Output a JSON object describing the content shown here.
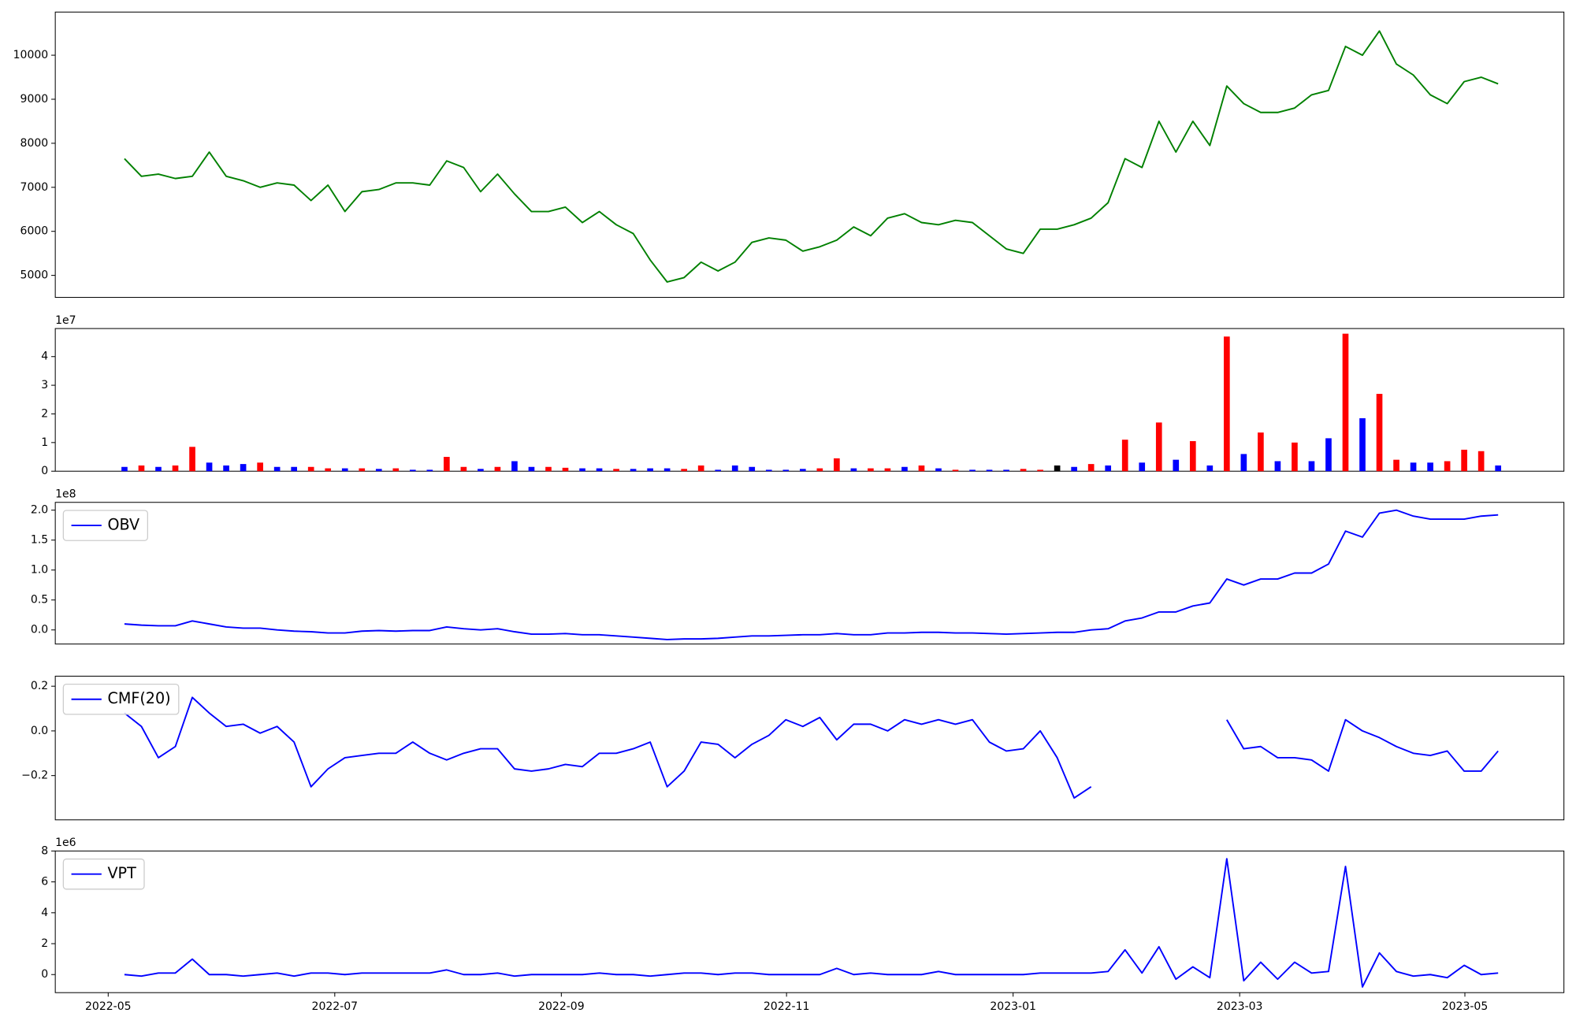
{
  "chart_data": [
    {
      "type": "line",
      "x": [
        2022.345,
        2022.3575,
        2022.37,
        2022.3825,
        2022.395,
        2022.4075,
        2022.42,
        2022.4325,
        2022.445,
        2022.4575,
        2022.47,
        2022.4825,
        2022.495,
        2022.5075,
        2022.52,
        2022.5325,
        2022.545,
        2022.5575,
        2022.57,
        2022.5825,
        2022.595,
        2022.6075,
        2022.62,
        2022.6325,
        2022.645,
        2022.6575,
        2022.67,
        2022.6825,
        2022.695,
        2022.7075,
        2022.72,
        2022.7325,
        2022.745,
        2022.7575,
        2022.77,
        2022.7825,
        2022.795,
        2022.8075,
        2022.82,
        2022.8325,
        2022.845,
        2022.8575,
        2022.87,
        2022.8825,
        2022.895,
        2022.9075,
        2022.92,
        2022.9325,
        2022.945,
        2022.9575,
        2022.97,
        2022.9825,
        2022.995,
        2023.0075,
        2023.02,
        2023.0325,
        2023.045,
        2023.0575,
        2023.07,
        2023.0825,
        2023.095,
        2023.1075,
        2023.12,
        2023.1325,
        2023.145,
        2023.1575,
        2023.17,
        2023.1825,
        2023.195,
        2023.2075,
        2023.22,
        2023.2325,
        2023.245,
        2023.2575,
        2023.27,
        2023.2825,
        2023.295,
        2023.3075,
        2023.32,
        2023.3325,
        2023.345,
        2023.3575
      ],
      "xlim": [
        2022.294,
        2023.406
      ],
      "values": [
        7650,
        7250,
        7300,
        7200,
        7250,
        7800,
        7250,
        7150,
        7000,
        7100,
        7050,
        6700,
        7050,
        6450,
        6900,
        6950,
        7100,
        7100,
        7050,
        7600,
        7450,
        6900,
        7300,
        6850,
        6450,
        6450,
        6550,
        6200,
        6450,
        6150,
        5950,
        5350,
        4850,
        4950,
        5300,
        5100,
        5300,
        5750,
        5850,
        5800,
        5550,
        5650,
        5800,
        6100,
        5900,
        6300,
        6400,
        6200,
        6150,
        6250,
        6200,
        5900,
        5600,
        5500,
        6050,
        6050,
        6150,
        6300,
        6650,
        7650,
        7450,
        8500,
        7800,
        8500,
        7950,
        9300,
        8900,
        8700,
        8700,
        8800,
        9100,
        9200,
        10200,
        10000,
        10550,
        9800,
        9550,
        9100,
        8900,
        9400,
        9500,
        9350
      ],
      "color": "#008000",
      "ylim": [
        4500,
        10980
      ],
      "yticks": [
        5000,
        6000,
        7000,
        8000,
        9000,
        10000
      ]
    },
    {
      "type": "bar",
      "offset_label": "1e7",
      "values": [
        0.15,
        0.2,
        0.15,
        0.2,
        0.85,
        0.3,
        0.2,
        0.25,
        0.3,
        0.15,
        0.15,
        0.15,
        0.1,
        0.1,
        0.1,
        0.08,
        0.1,
        0.05,
        0.05,
        0.5,
        0.15,
        0.08,
        0.15,
        0.35,
        0.15,
        0.15,
        0.12,
        0.1,
        0.1,
        0.08,
        0.08,
        0.1,
        0.1,
        0.08,
        0.2,
        0.05,
        0.2,
        0.15,
        0.05,
        0.05,
        0.08,
        0.1,
        0.45,
        0.1,
        0.1,
        0.1,
        0.15,
        0.2,
        0.1,
        0.05,
        0.05,
        0.05,
        0.05,
        0.08,
        0.05,
        0.2,
        0.15,
        0.25,
        0.2,
        1.1,
        0.3,
        1.7,
        0.4,
        1.05,
        0.2,
        4.7,
        0.6,
        1.35,
        0.35,
        1.0,
        0.35,
        1.15,
        4.8,
        1.85,
        2.7,
        0.4,
        0.3,
        0.3,
        0.35,
        0.75,
        0.7,
        0.2
      ],
      "colors": [
        "#0000ff",
        "#ff0000",
        "#0000ff",
        "#ff0000",
        "#ff0000",
        "#0000ff",
        "#0000ff",
        "#0000ff",
        "#ff0000",
        "#0000ff",
        "#0000ff",
        "#ff0000",
        "#ff0000",
        "#0000ff",
        "#ff0000",
        "#0000ff",
        "#ff0000",
        "#0000ff",
        "#0000ff",
        "#ff0000",
        "#ff0000",
        "#0000ff",
        "#ff0000",
        "#0000ff",
        "#0000ff",
        "#ff0000",
        "#ff0000",
        "#0000ff",
        "#0000ff",
        "#ff0000",
        "#0000ff",
        "#0000ff",
        "#0000ff",
        "#ff0000",
        "#ff0000",
        "#0000ff",
        "#0000ff",
        "#0000ff",
        "#0000ff",
        "#0000ff",
        "#0000ff",
        "#ff0000",
        "#ff0000",
        "#0000ff",
        "#ff0000",
        "#ff0000",
        "#0000ff",
        "#ff0000",
        "#0000ff",
        "#ff0000",
        "#0000ff",
        "#0000ff",
        "#0000ff",
        "#ff0000",
        "#ff0000",
        "#000000",
        "#0000ff",
        "#ff0000",
        "#0000ff",
        "#ff0000",
        "#0000ff",
        "#ff0000",
        "#0000ff",
        "#ff0000",
        "#0000ff",
        "#ff0000",
        "#0000ff",
        "#ff0000",
        "#0000ff",
        "#ff0000",
        "#0000ff",
        "#0000ff",
        "#ff0000",
        "#0000ff",
        "#ff0000",
        "#ff0000",
        "#0000ff",
        "#0000ff",
        "#ff0000",
        "#ff0000",
        "#ff0000",
        "#0000ff"
      ],
      "ylim": [
        0,
        4.98
      ],
      "yticks": [
        0,
        1,
        2,
        3,
        4
      ]
    },
    {
      "type": "line",
      "offset_label": "1e8",
      "series": [
        {
          "name": "OBV",
          "color": "#0000ff",
          "values": [
            0.1,
            0.08,
            0.07,
            0.07,
            0.15,
            0.1,
            0.05,
            0.03,
            0.03,
            0.0,
            -0.02,
            -0.03,
            -0.05,
            -0.05,
            -0.02,
            -0.01,
            -0.02,
            -0.01,
            -0.01,
            0.05,
            0.02,
            0.0,
            0.02,
            -0.03,
            -0.07,
            -0.07,
            -0.06,
            -0.08,
            -0.08,
            -0.1,
            -0.12,
            -0.14,
            -0.16,
            -0.15,
            -0.15,
            -0.14,
            -0.12,
            -0.1,
            -0.1,
            -0.09,
            -0.08,
            -0.08,
            -0.06,
            -0.08,
            -0.08,
            -0.05,
            -0.05,
            -0.04,
            -0.04,
            -0.05,
            -0.05,
            -0.06,
            -0.07,
            -0.06,
            -0.05,
            -0.04,
            -0.04,
            0.0,
            0.02,
            0.15,
            0.2,
            0.3,
            0.3,
            0.4,
            0.45,
            0.85,
            0.75,
            0.85,
            0.85,
            0.95,
            0.95,
            1.1,
            1.65,
            1.55,
            1.95,
            2.0,
            1.9,
            1.85,
            1.85,
            1.85,
            1.9,
            1.92
          ]
        }
      ],
      "legend": "upper left",
      "ylim": [
        -0.235,
        2.13
      ],
      "yticks": [
        {
          "value": 0,
          "label": "0.0"
        },
        0.5,
        {
          "value": 1,
          "label": "1.0"
        },
        1.5,
        {
          "value": 2,
          "label": "2.0"
        }
      ]
    },
    {
      "type": "line",
      "series": [
        {
          "name": "CMF(20)",
          "color": "#0000ff",
          "values": [
            0.08,
            0.02,
            -0.12,
            -0.07,
            0.15,
            0.08,
            0.02,
            0.03,
            -0.01,
            0.02,
            -0.05,
            -0.25,
            -0.17,
            -0.12,
            -0.11,
            -0.1,
            -0.1,
            -0.05,
            -0.1,
            -0.13,
            -0.1,
            -0.08,
            -0.08,
            -0.17,
            -0.18,
            -0.17,
            -0.15,
            -0.16,
            -0.1,
            -0.1,
            -0.08,
            -0.05,
            -0.25,
            -0.18,
            -0.05,
            -0.06,
            -0.12,
            -0.06,
            -0.02,
            0.05,
            0.02,
            0.06,
            -0.04,
            0.03,
            0.03,
            0.0,
            0.05,
            0.03,
            0.05,
            0.03,
            0.05,
            -0.05,
            -0.09,
            -0.08,
            0.0,
            -0.12,
            -0.3,
            -0.25,
            null,
            null,
            null,
            null,
            null,
            null,
            null,
            0.05,
            -0.08,
            -0.07,
            -0.12,
            -0.12,
            -0.13,
            -0.18,
            0.05,
            0.0,
            -0.03,
            -0.07,
            -0.1,
            -0.11,
            -0.09,
            -0.18,
            -0.18,
            -0.09
          ]
        }
      ],
      "legend": "upper left",
      "ylim": [
        -0.398,
        0.245
      ],
      "yticks": [
        {
          "value": -0.2,
          "label": "−0.2"
        },
        {
          "value": 0,
          "label": "0.0"
        },
        0.2
      ]
    },
    {
      "type": "line",
      "offset_label": "1e6",
      "series": [
        {
          "name": "VPT",
          "color": "#0000ff",
          "values": [
            0,
            -0.1,
            0.1,
            0.1,
            1.0,
            0,
            0,
            -0.1,
            0,
            0.1,
            -0.1,
            0.1,
            0.1,
            0,
            0.1,
            0.1,
            0.1,
            0.1,
            0.1,
            0.3,
            0,
            0,
            0.1,
            -0.1,
            0,
            0,
            0,
            0,
            0.1,
            0,
            0,
            -0.1,
            0,
            0.1,
            0.1,
            0,
            0.1,
            0.1,
            0,
            0,
            0,
            0,
            0.4,
            0,
            0.1,
            0,
            0,
            0,
            0.2,
            0,
            0,
            0,
            0,
            0,
            0.1,
            0.1,
            0.1,
            0.1,
            0.2,
            1.6,
            0.1,
            1.8,
            -0.3,
            0.5,
            -0.2,
            7.5,
            -0.4,
            0.8,
            -0.3,
            0.8,
            0.1,
            0.2,
            7.0,
            -0.8,
            1.4,
            0.2,
            -0.1,
            0,
            -0.2,
            0.6,
            0,
            0.1
          ]
        }
      ],
      "legend": "upper left",
      "ylim": [
        -1.17,
        8
      ],
      "yticks": [
        0,
        2,
        4,
        6,
        8
      ],
      "xticks": [
        {
          "value": 2022.333,
          "label": "2022-05"
        },
        {
          "value": 2022.5,
          "label": "2022-07"
        },
        {
          "value": 2022.667,
          "label": "2022-09"
        },
        {
          "value": 2022.833,
          "label": "2022-11"
        },
        {
          "value": 2023.0,
          "label": "2023-01"
        },
        {
          "value": 2023.167,
          "label": "2023-03"
        },
        {
          "value": 2023.333,
          "label": "2023-05"
        }
      ]
    }
  ]
}
